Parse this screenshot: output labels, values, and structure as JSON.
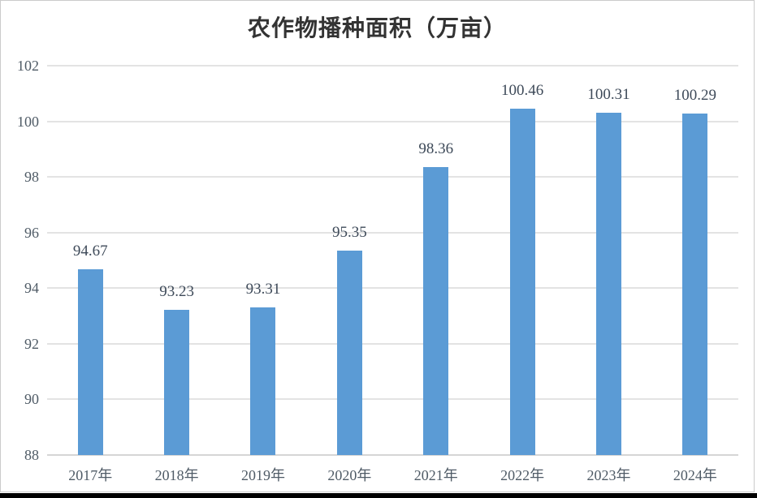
{
  "chart_data": {
    "type": "bar",
    "title": "农作物播种面积（万亩）",
    "categories": [
      "2017年",
      "2018年",
      "2019年",
      "2020年",
      "2021年",
      "2022年",
      "2023年",
      "2024年"
    ],
    "values": [
      94.67,
      93.23,
      93.31,
      95.35,
      98.36,
      100.46,
      100.31,
      100.29
    ],
    "value_labels": [
      "94.67",
      "93.23",
      "93.31",
      "95.35",
      "98.36",
      "100.46",
      "100.31",
      "100.29"
    ],
    "xlabel": "",
    "ylabel": "",
    "ylim": [
      88,
      102
    ],
    "yticks": [
      88,
      90,
      92,
      94,
      96,
      98,
      100,
      102
    ],
    "grid": true,
    "legend_position": "none"
  },
  "colors": {
    "bar": "#5B9BD5",
    "gridline": "#E3E3E3",
    "axis_line": "#D5D5D5",
    "axis_label": "#4F5B66",
    "data_label": "#3E4A59",
    "title": "#333333",
    "frame_border": "#CBCBCB",
    "bottom_strip": "#000000",
    "background": "#FFFFFF"
  }
}
